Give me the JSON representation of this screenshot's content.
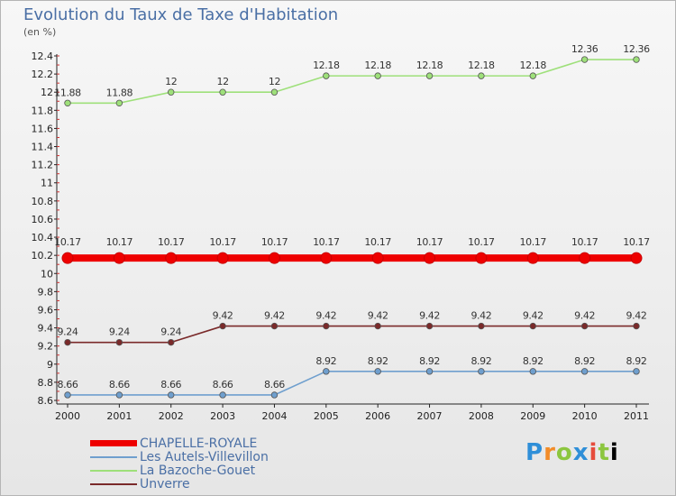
{
  "header": {
    "title": "Evolution du Taux de Taxe d'Habitation",
    "unit": "(en %)"
  },
  "brand": {
    "letters": [
      "P",
      "r",
      "o",
      "x",
      "i",
      "t",
      "i"
    ]
  },
  "chart_data": {
    "type": "line",
    "title": "Evolution du Taux de Taxe d'Habitation",
    "ylabel": "(en %)",
    "xlabel": "",
    "x": [
      "2000",
      "2001",
      "2002",
      "2003",
      "2004",
      "2005",
      "2006",
      "2007",
      "2008",
      "2009",
      "2010",
      "2011"
    ],
    "ylim": [
      8.6,
      12.4
    ],
    "yticks": [
      "8.6",
      "8.8",
      "9",
      "9.2",
      "9.4",
      "9.6",
      "9.8",
      "10",
      "10.2",
      "10.4",
      "10.6",
      "10.8",
      "11",
      "11.2",
      "11.4",
      "11.6",
      "11.8",
      "12",
      "12.2",
      "12.4"
    ],
    "legend_position": "bottom-left",
    "series": [
      {
        "name": "CHAPELLE-ROYALE",
        "color": "#ee0000",
        "values": [
          10.17,
          10.17,
          10.17,
          10.17,
          10.17,
          10.17,
          10.17,
          10.17,
          10.17,
          10.17,
          10.17,
          10.17
        ],
        "labels": [
          "10.17",
          "10.17",
          "10.17",
          "10.17",
          "10.17",
          "10.17",
          "10.17",
          "10.17",
          "10.17",
          "10.17",
          "10.17",
          "10.17"
        ]
      },
      {
        "name": "Les Autels-Villevillon",
        "color": "#6f9fce",
        "values": [
          8.66,
          8.66,
          8.66,
          8.66,
          8.66,
          8.92,
          8.92,
          8.92,
          8.92,
          8.92,
          8.92,
          8.92
        ],
        "labels": [
          "8.66",
          "8.66",
          "8.66",
          "8.66",
          "8.66",
          "8.92",
          "8.92",
          "8.92",
          "8.92",
          "8.92",
          "8.92",
          "8.92"
        ]
      },
      {
        "name": "La Bazoche-Gouet",
        "color": "#9ee07a",
        "values": [
          11.88,
          11.88,
          12,
          12,
          12,
          12.18,
          12.18,
          12.18,
          12.18,
          12.18,
          12.36,
          12.36
        ],
        "labels": [
          "11.88",
          "11.88",
          "12",
          "12",
          "12",
          "12.18",
          "12.18",
          "12.18",
          "12.18",
          "12.18",
          "12.36",
          "12.36"
        ]
      },
      {
        "name": "Unverre",
        "color": "#7a2a2a",
        "values": [
          9.24,
          9.24,
          9.24,
          9.42,
          9.42,
          9.42,
          9.42,
          9.42,
          9.42,
          9.42,
          9.42,
          9.42
        ],
        "labels": [
          "9.24",
          "9.24",
          "9.24",
          "9.42",
          "9.42",
          "9.42",
          "9.42",
          "9.42",
          "9.42",
          "9.42",
          "9.42",
          "9.42"
        ]
      }
    ]
  }
}
